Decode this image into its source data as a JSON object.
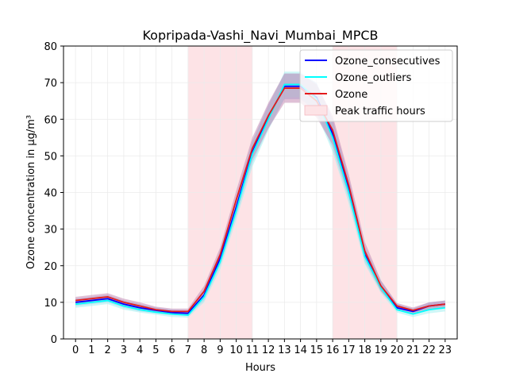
{
  "chart_data": {
    "type": "line",
    "title": "Kopripada-Vashi_Navi_Mumbai_MPCB",
    "xlabel": "Hours",
    "ylabel": "Ozone concentration in μg/m³",
    "xlim": [
      -0.75,
      23.75
    ],
    "ylim": [
      0,
      80
    ],
    "x": [
      0,
      1,
      2,
      3,
      4,
      5,
      6,
      7,
      8,
      9,
      10,
      11,
      12,
      13,
      14,
      15,
      16,
      17,
      18,
      19,
      20,
      21,
      22,
      23
    ],
    "x_ticks": [
      "0",
      "1",
      "2",
      "3",
      "4",
      "5",
      "6",
      "7",
      "8",
      "9",
      "10",
      "11",
      "12",
      "13",
      "14",
      "15",
      "16",
      "17",
      "18",
      "19",
      "20",
      "21",
      "22",
      "23"
    ],
    "y_ticks": [
      "0",
      "10",
      "20",
      "30",
      "40",
      "50",
      "60",
      "70",
      "80"
    ],
    "y_tick_values": [
      0,
      10,
      20,
      30,
      40,
      50,
      60,
      70,
      80
    ],
    "grid": true,
    "legend_position": "top-right",
    "shaded_regions": [
      {
        "name": "Peak traffic hours",
        "x_start": 7,
        "x_end": 11,
        "color": "#fde3e6"
      },
      {
        "name": "Peak traffic hours",
        "x_start": 16,
        "x_end": 20,
        "color": "#fde3e6"
      }
    ],
    "series": [
      {
        "name": "Ozone_consecutives",
        "color": "#0000ff",
        "band_color": "#9bb7e8",
        "values": [
          10.0,
          10.5,
          11.0,
          9.5,
          8.5,
          7.8,
          7.2,
          7.0,
          12.0,
          22.0,
          36.0,
          51.0,
          60.5,
          69.0,
          69.0,
          66.0,
          56.0,
          41.0,
          23.0,
          14.5,
          8.5,
          7.5,
          9.0,
          9.5
        ],
        "lower": [
          9.0,
          9.5,
          10.0,
          8.5,
          7.5,
          7.0,
          6.5,
          6.3,
          10.5,
          20.0,
          33.5,
          48.0,
          57.5,
          65.5,
          65.5,
          62.0,
          52.0,
          38.0,
          21.0,
          13.0,
          7.8,
          6.8,
          8.0,
          8.5
        ],
        "upper": [
          11.0,
          11.5,
          12.0,
          10.5,
          9.5,
          8.6,
          8.0,
          7.8,
          13.5,
          24.0,
          38.5,
          54.0,
          64.0,
          72.5,
          72.5,
          70.0,
          60.0,
          44.0,
          25.0,
          16.0,
          9.5,
          8.3,
          10.0,
          10.5
        ]
      },
      {
        "name": "Ozone_outliers",
        "color": "#00ffff",
        "band_color": "#a6f0f0",
        "values": [
          9.5,
          10.0,
          10.5,
          9.0,
          8.0,
          7.3,
          6.8,
          6.5,
          11.5,
          21.0,
          35.0,
          50.5,
          60.0,
          69.5,
          69.5,
          65.5,
          55.0,
          40.0,
          22.5,
          14.0,
          8.0,
          6.8,
          8.0,
          8.5
        ],
        "lower": [
          8.5,
          9.0,
          9.5,
          8.0,
          7.2,
          6.6,
          6.0,
          5.8,
          10.0,
          19.0,
          32.5,
          47.0,
          57.0,
          66.0,
          66.0,
          61.5,
          51.0,
          37.0,
          20.5,
          12.5,
          7.2,
          6.0,
          7.0,
          7.5
        ],
        "upper": [
          10.5,
          11.0,
          11.5,
          10.0,
          8.8,
          8.0,
          7.6,
          7.2,
          13.0,
          23.0,
          37.5,
          54.0,
          63.0,
          73.0,
          73.0,
          69.5,
          59.0,
          43.0,
          24.5,
          15.5,
          8.8,
          7.6,
          9.0,
          9.5
        ]
      },
      {
        "name": "Ozone",
        "color": "#e31a1c",
        "band_color": "#c48cb4",
        "values": [
          10.5,
          11.0,
          11.5,
          10.0,
          9.0,
          8.0,
          7.5,
          7.5,
          13.0,
          23.0,
          38.0,
          52.0,
          61.0,
          68.5,
          68.5,
          65.0,
          57.0,
          42.0,
          24.0,
          14.5,
          9.0,
          7.8,
          9.0,
          9.5
        ],
        "lower": [
          9.5,
          10.0,
          10.5,
          9.0,
          8.0,
          7.2,
          6.8,
          6.6,
          11.5,
          21.0,
          35.5,
          49.0,
          57.5,
          64.5,
          64.5,
          60.5,
          53.0,
          39.0,
          22.0,
          13.0,
          8.2,
          7.0,
          8.2,
          8.6
        ],
        "upper": [
          11.5,
          12.0,
          12.5,
          11.0,
          10.0,
          8.8,
          8.3,
          8.3,
          14.5,
          25.0,
          40.5,
          55.0,
          64.5,
          72.5,
          72.5,
          69.5,
          61.0,
          45.0,
          26.5,
          16.0,
          9.8,
          8.6,
          10.0,
          10.5
        ]
      }
    ],
    "legend": [
      {
        "label": "Ozone_consecutives",
        "kind": "line",
        "color": "#0000ff"
      },
      {
        "label": "Ozone_outliers",
        "kind": "line",
        "color": "#00ffff"
      },
      {
        "label": "Ozone",
        "kind": "line",
        "color": "#e31a1c"
      },
      {
        "label": "Peak traffic hours",
        "kind": "patch",
        "color": "#fde3e6"
      }
    ]
  }
}
